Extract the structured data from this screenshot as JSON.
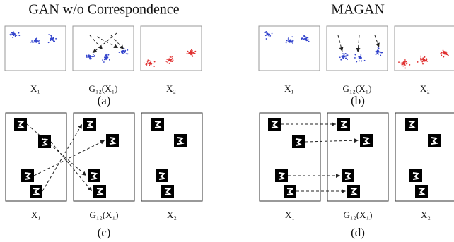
{
  "panels": [
    {
      "title": "GAN w/o Correspondence",
      "rows": [
        {
          "labels": [
            "X₁",
            "G₁₂(X₁)",
            "X₂"
          ],
          "caption": "(a)"
        },
        {
          "labels": [
            "X₁",
            "G₁₂(X₁)",
            "X₂"
          ],
          "caption": "(c)"
        }
      ]
    },
    {
      "title": "MAGAN",
      "rows": [
        {
          "labels": [
            "X₁",
            "G₁₂(X₁)",
            "X₂"
          ],
          "caption": "(b)"
        },
        {
          "labels": [
            "X₁",
            "G₁₂(X₁)",
            "X₂"
          ],
          "caption": "(d)"
        }
      ]
    }
  ]
}
